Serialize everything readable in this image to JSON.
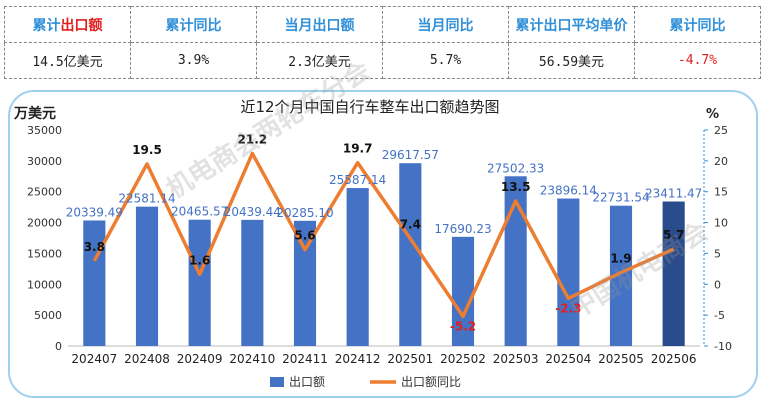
{
  "kpi_table": {
    "headers": [
      {
        "prefix": "累计",
        "accent": "出口额"
      },
      {
        "prefix": "累计同比",
        "accent": ""
      },
      {
        "prefix": "当月出口额",
        "accent": ""
      },
      {
        "prefix": "当月同比",
        "accent": ""
      },
      {
        "prefix": "累计出口平均单价",
        "accent": ""
      },
      {
        "prefix": "累计同比",
        "accent": ""
      }
    ],
    "values": [
      "14.5亿美元",
      "3.9%",
      "2.3亿美元",
      "5.7%",
      "56.59美元",
      "-4.7%"
    ]
  },
  "colors": {
    "bar": "#4472c4",
    "bar_last": "#2a4b8c",
    "line": "#ed7d31",
    "label_blue": "#4472c4",
    "label_red": "#e02020",
    "axis_right": "#2f8fd8",
    "header_text": "#2f8fd8",
    "panel_border": "#9fd0ee"
  },
  "watermark": [
    "机电商会两轮车分会",
    "中国机电商会"
  ],
  "chart_data": {
    "type": "bar",
    "title": "近12个月中国自行车整车出口额趋势图",
    "ylabel": "万美元",
    "y2label": "%",
    "ylim": [
      0,
      35000
    ],
    "y2lim": [
      -10,
      25
    ],
    "yticks": [
      0,
      5000,
      10000,
      15000,
      20000,
      25000,
      30000,
      35000
    ],
    "y2ticks": [
      -10,
      -5,
      0,
      5,
      10,
      15,
      20,
      25
    ],
    "categories": [
      "202407",
      "202408",
      "202409",
      "202410",
      "202411",
      "202412",
      "202501",
      "202502",
      "202503",
      "202504",
      "202505",
      "202506"
    ],
    "series": [
      {
        "name": "出口额",
        "type": "bar",
        "axis": "left",
        "values": [
          20339.49,
          22581.14,
          20465.57,
          20439.44,
          20285.1,
          25587.14,
          29617.57,
          17690.23,
          27502.33,
          23896.14,
          22731.54,
          23411.47
        ],
        "labels": [
          "20339.49",
          "22581.14",
          "20465.57",
          "20439.44",
          "20285.10",
          "25587.14",
          "29617.57",
          "17690.23",
          "27502.33",
          "23896.14",
          "22731.54",
          "23411.47"
        ]
      },
      {
        "name": "出口额同比",
        "type": "line",
        "axis": "right",
        "values": [
          3.8,
          19.5,
          1.6,
          21.2,
          5.6,
          19.7,
          7.4,
          -5.2,
          13.5,
          -2.3,
          1.9,
          5.7
        ],
        "labels": [
          "3.8",
          "19.5",
          "1.6",
          "21.2",
          "5.6",
          "19.7",
          "7.4",
          "-5.2",
          "13.5",
          "-2.3",
          "1.9",
          "5.7"
        ]
      }
    ],
    "legend": "bottom"
  }
}
